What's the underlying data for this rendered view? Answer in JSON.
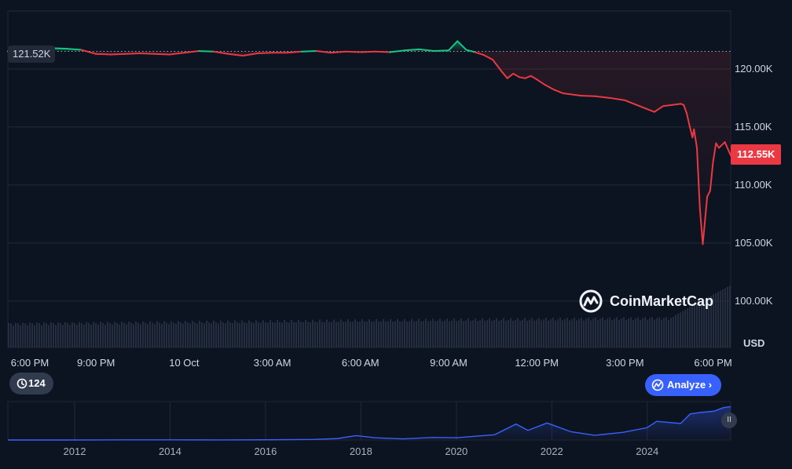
{
  "chart_data": {
    "type": "line",
    "currency_label": "USD",
    "y_ticks": [
      {
        "value": 100000,
        "label": "100.00K"
      },
      {
        "value": 105000,
        "label": "105.00K"
      },
      {
        "value": 110000,
        "label": "110.00K"
      },
      {
        "value": 115000,
        "label": "115.00K"
      },
      {
        "value": 120000,
        "label": "120.00K"
      }
    ],
    "ylim": [
      96000,
      125000
    ],
    "x_ticks": [
      "6:00 PM",
      "9:00 PM",
      "10 Oct",
      "3:00 AM",
      "6:00 AM",
      "9:00 AM",
      "12:00 PM",
      "3:00 PM",
      "6:00 PM"
    ],
    "x_tick_hours": [
      0,
      3,
      6,
      9,
      12,
      15,
      18,
      21,
      24
    ],
    "xlim_hours": [
      0,
      24.6
    ],
    "open_price": 121520,
    "open_label": "121.52K",
    "last_price": 112550,
    "last_label": "112.55K",
    "series": [
      {
        "hours": [
          0,
          0.5,
          1,
          1.5,
          2,
          2.5,
          3,
          3.5,
          4,
          4.5,
          5,
          5.5,
          6,
          6.5,
          7,
          7.5,
          8,
          8.5,
          9,
          9.5,
          10,
          10.5,
          11,
          11.5,
          12,
          12.5,
          13,
          13.5,
          14,
          14.5,
          15,
          15.3,
          15.6,
          15.9,
          16.2,
          16.5,
          16.8,
          17.0,
          17.2,
          17.4,
          17.6,
          17.8,
          18.0,
          18.3,
          18.6,
          18.9,
          19.2,
          19.5,
          20.0,
          20.5,
          21.0,
          21.5,
          22.0,
          22.3,
          22.6,
          22.9,
          23.0,
          23.1,
          23.2,
          23.3,
          23.35,
          23.45,
          23.55,
          23.65,
          23.8,
          23.9,
          24.0,
          24.1,
          24.2,
          24.4,
          24.6
        ],
        "prices": [
          121520,
          121600,
          121700,
          121800,
          121750,
          121650,
          121300,
          121250,
          121300,
          121350,
          121300,
          121250,
          121400,
          121550,
          121500,
          121300,
          121150,
          121350,
          121400,
          121400,
          121500,
          121550,
          121400,
          121500,
          121450,
          121500,
          121450,
          121600,
          121700,
          121550,
          121600,
          122400,
          121650,
          121450,
          121200,
          120800,
          119800,
          119200,
          119600,
          119300,
          119200,
          119400,
          119100,
          118600,
          118200,
          117900,
          117800,
          117700,
          117650,
          117500,
          117300,
          116800,
          116300,
          116800,
          116900,
          117000,
          116900,
          116200,
          115100,
          114100,
          114800,
          113200,
          108000,
          104900,
          109000,
          109500,
          112000,
          113600,
          113200,
          113700,
          112550
        ]
      }
    ],
    "navigator_years": [
      "2012",
      "2014",
      "2016",
      "2018",
      "2020",
      "2022",
      "2024"
    ],
    "navigator_year_values": [
      2012,
      2014,
      2016,
      2018,
      2020,
      2022,
      2024
    ],
    "navigator_xlim": [
      2010.6,
      2025.75
    ],
    "navigator_series": {
      "years": [
        2010.6,
        2012,
        2013,
        2014,
        2015,
        2016,
        2017,
        2017.5,
        2017.9,
        2018.3,
        2018.9,
        2019.5,
        2020.0,
        2020.8,
        2021.25,
        2021.5,
        2021.9,
        2022.4,
        2022.9,
        2023.5,
        2024.0,
        2024.2,
        2024.7,
        2024.9,
        2025.1,
        2025.4,
        2025.6,
        2025.75
      ],
      "prices": [
        0,
        10,
        500,
        400,
        300,
        700,
        2000,
        5000,
        16000,
        8000,
        4000,
        9000,
        8000,
        19000,
        58000,
        35000,
        62000,
        30000,
        17000,
        28000,
        45000,
        68000,
        60000,
        95000,
        100000,
        105000,
        118000,
        121500
      ]
    },
    "navigator_ylim": [
      0,
      140000
    ]
  },
  "controls": {
    "history_count": "124",
    "analyze_label": "Analyze",
    "pause_glyph": "II"
  },
  "watermark": {
    "text": "CoinMarketCap"
  },
  "colors": {
    "background": "#0d1421",
    "up": "#16c784",
    "down": "#ea3943",
    "navigator_line": "#3861fb",
    "badge_last": "#ea3943",
    "analyze_button": "#3861fb"
  }
}
